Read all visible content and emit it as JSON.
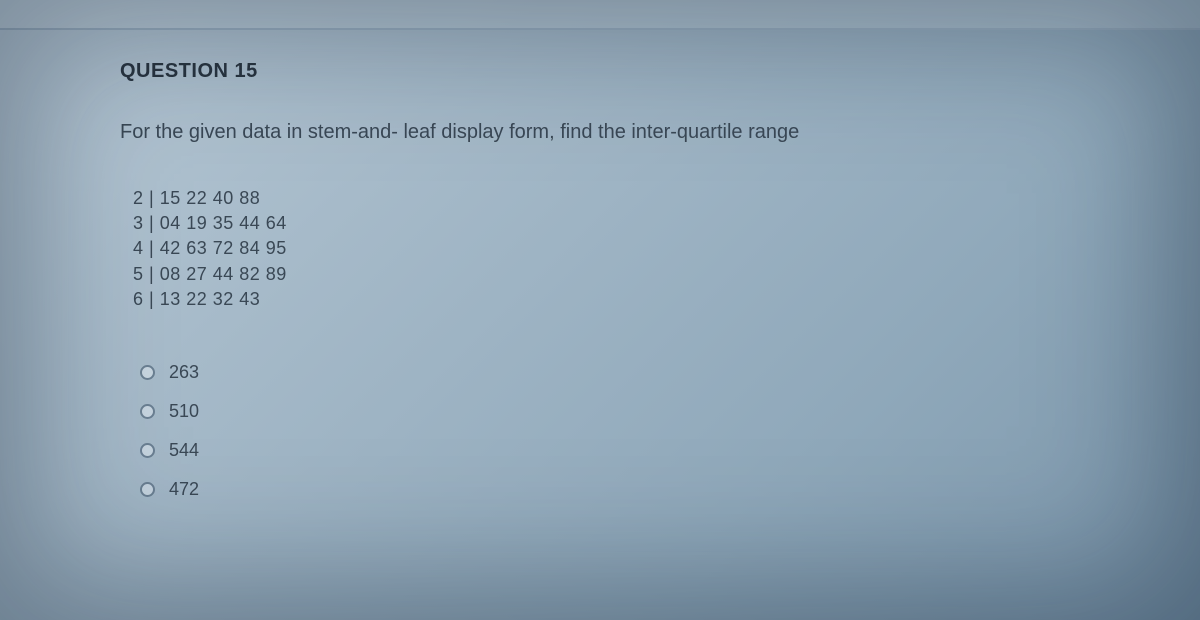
{
  "question": {
    "title": "QUESTION 15",
    "prompt": "For the given data in stem-and- leaf display form, find the inter-quartile range",
    "stemLeaf": {
      "rows": [
        {
          "stem": "2",
          "leaves": "15 22 40 88"
        },
        {
          "stem": "3",
          "leaves": "04 19 35 44 64"
        },
        {
          "stem": "4",
          "leaves": "42 63 72 84 95"
        },
        {
          "stem": "5",
          "leaves": "08 27 44 82 89"
        },
        {
          "stem": "6",
          "leaves": "13 22 32 43"
        }
      ]
    },
    "options": [
      {
        "label": "263"
      },
      {
        "label": "510"
      },
      {
        "label": "544"
      },
      {
        "label": "472"
      }
    ]
  },
  "styling": {
    "background_gradient": [
      "#b8c9d6",
      "#a6bac9",
      "#8fa8ba",
      "#7b96ab"
    ],
    "text_color_primary": "#2a3540",
    "text_color_body": "#3a4855",
    "radio_border": "#6a7f92",
    "title_fontsize": 20,
    "body_fontsize": 20,
    "stem_fontsize": 18,
    "option_fontsize": 18
  }
}
